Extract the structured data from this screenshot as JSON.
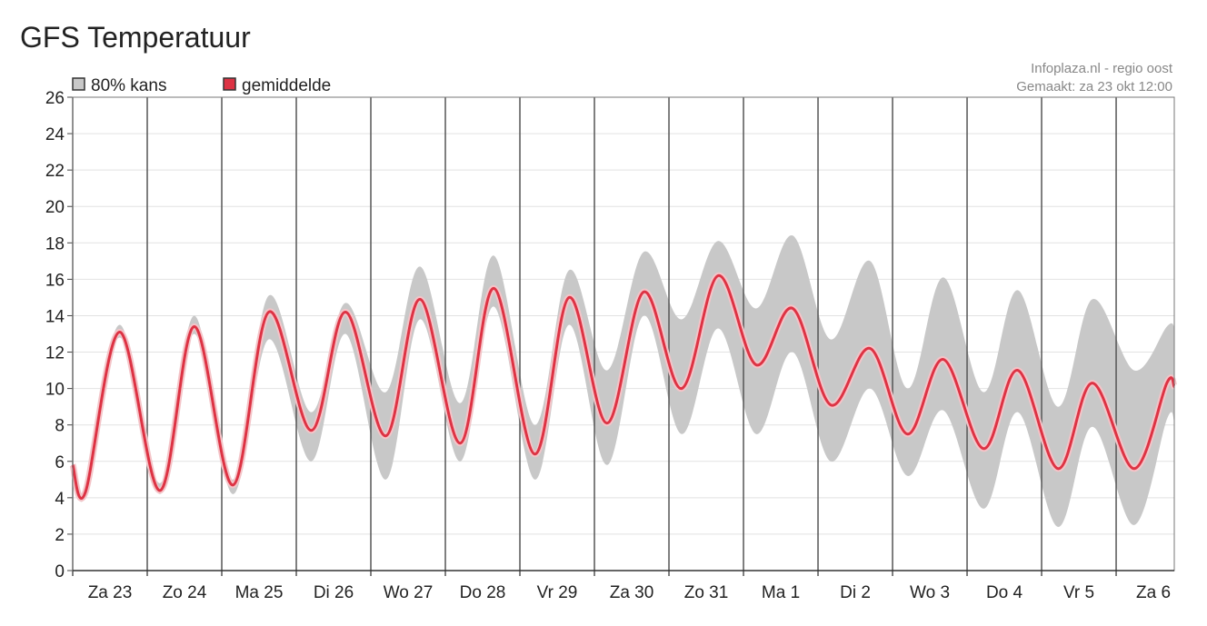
{
  "chart_data": {
    "type": "line",
    "title": "GFS Temperatuur",
    "source": "Infoplaza.nl - regio oost",
    "made": "Gemaakt: za 23 okt 12:00",
    "x": [
      0,
      0.17,
      0.63,
      1.17,
      1.63,
      2.15,
      2.63,
      3.2,
      3.66,
      4.2,
      4.66,
      5.2,
      5.65,
      6.2,
      6.66,
      7.17,
      7.66,
      8.17,
      8.66,
      9.17,
      9.66,
      10.17,
      10.7,
      11.2,
      11.68,
      12.22,
      12.68,
      13.22,
      13.68,
      14.24,
      14.68,
      14.78
    ],
    "series": [
      {
        "name": "80% kans",
        "color": "#c8c8c8",
        "upper": [
          6.0,
          4.6,
          13.5,
          4.8,
          14.0,
          5.0,
          15.1,
          8.7,
          14.7,
          9.8,
          16.7,
          9.2,
          17.3,
          8.0,
          16.5,
          11.0,
          17.5,
          13.8,
          18.1,
          14.4,
          18.4,
          12.7,
          17.0,
          10.0,
          16.1,
          9.8,
          15.4,
          9.0,
          14.9,
          11.0,
          13.4,
          13.4
        ],
        "lower": [
          5.6,
          4.1,
          12.8,
          4.2,
          13.0,
          4.2,
          12.7,
          6.0,
          13.0,
          5.0,
          13.8,
          6.0,
          14.5,
          5.0,
          13.5,
          5.8,
          14.0,
          7.5,
          13.3,
          7.5,
          12.0,
          6.0,
          10.0,
          5.2,
          8.8,
          3.4,
          8.7,
          2.4,
          7.9,
          2.5,
          8.3,
          8.2
        ]
      },
      {
        "name": "gemiddelde",
        "color": "#dd3344",
        "values": [
          5.8,
          4.3,
          13.1,
          4.4,
          13.4,
          4.7,
          14.2,
          7.7,
          14.2,
          7.4,
          14.9,
          7.0,
          15.5,
          6.4,
          15.0,
          8.1,
          15.3,
          10.0,
          16.2,
          11.3,
          14.4,
          9.1,
          12.2,
          7.5,
          11.6,
          6.7,
          11.0,
          5.6,
          10.3,
          5.6,
          10.3,
          10.1
        ]
      }
    ],
    "xlim": [
      0,
      14.78
    ],
    "xticks": [
      {
        "value": 0,
        "label": "Za 23"
      },
      {
        "value": 1,
        "label": "Zo 24"
      },
      {
        "value": 2,
        "label": "Ma 25"
      },
      {
        "value": 3,
        "label": "Di 26"
      },
      {
        "value": 4,
        "label": "Wo 27"
      },
      {
        "value": 5,
        "label": "Do 28"
      },
      {
        "value": 6,
        "label": "Vr 29"
      },
      {
        "value": 7,
        "label": "Za 30"
      },
      {
        "value": 8,
        "label": "Zo 31"
      },
      {
        "value": 9,
        "label": "Ma 1"
      },
      {
        "value": 10,
        "label": "Di 2"
      },
      {
        "value": 11,
        "label": "Wo 3"
      },
      {
        "value": 12,
        "label": "Do 4"
      },
      {
        "value": 13,
        "label": "Vr 5"
      },
      {
        "value": 14,
        "label": "Za 6"
      }
    ],
    "ylim": [
      0,
      26
    ],
    "yticks": [
      0,
      2,
      4,
      6,
      8,
      10,
      12,
      14,
      16,
      18,
      20,
      22,
      24,
      26
    ],
    "grid": true
  }
}
